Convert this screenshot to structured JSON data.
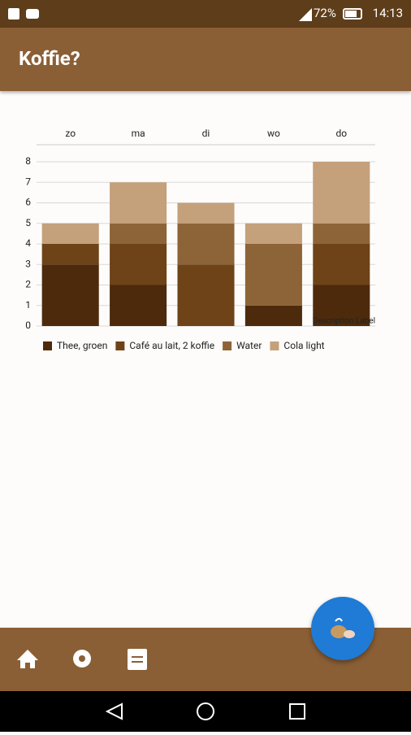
{
  "status_bar": {
    "battery": "72%",
    "time": "14:13"
  },
  "app_bar": {
    "title": "Koffie?"
  },
  "chart_data": {
    "type": "bar",
    "stacked": true,
    "categories": [
      "zo",
      "ma",
      "di",
      "wo",
      "do"
    ],
    "series": [
      {
        "name": "Thee, groen",
        "color": "#4e2a0c",
        "values": [
          3,
          2,
          0,
          1,
          2
        ]
      },
      {
        "name": "Café au lait, 2 koffie",
        "color": "#6e4318",
        "values": [
          1,
          2,
          3,
          0,
          2
        ]
      },
      {
        "name": "Water",
        "color": "#8d6437",
        "values": [
          0,
          1,
          2,
          3,
          1
        ]
      },
      {
        "name": "Cola light",
        "color": "#c4a07b",
        "values": [
          1,
          2,
          1,
          1,
          3
        ]
      }
    ],
    "ylim": [
      0,
      8
    ],
    "yticks": [
      0,
      1,
      2,
      3,
      4,
      5,
      6,
      7,
      8
    ],
    "grid": true,
    "description": "Description Label"
  }
}
